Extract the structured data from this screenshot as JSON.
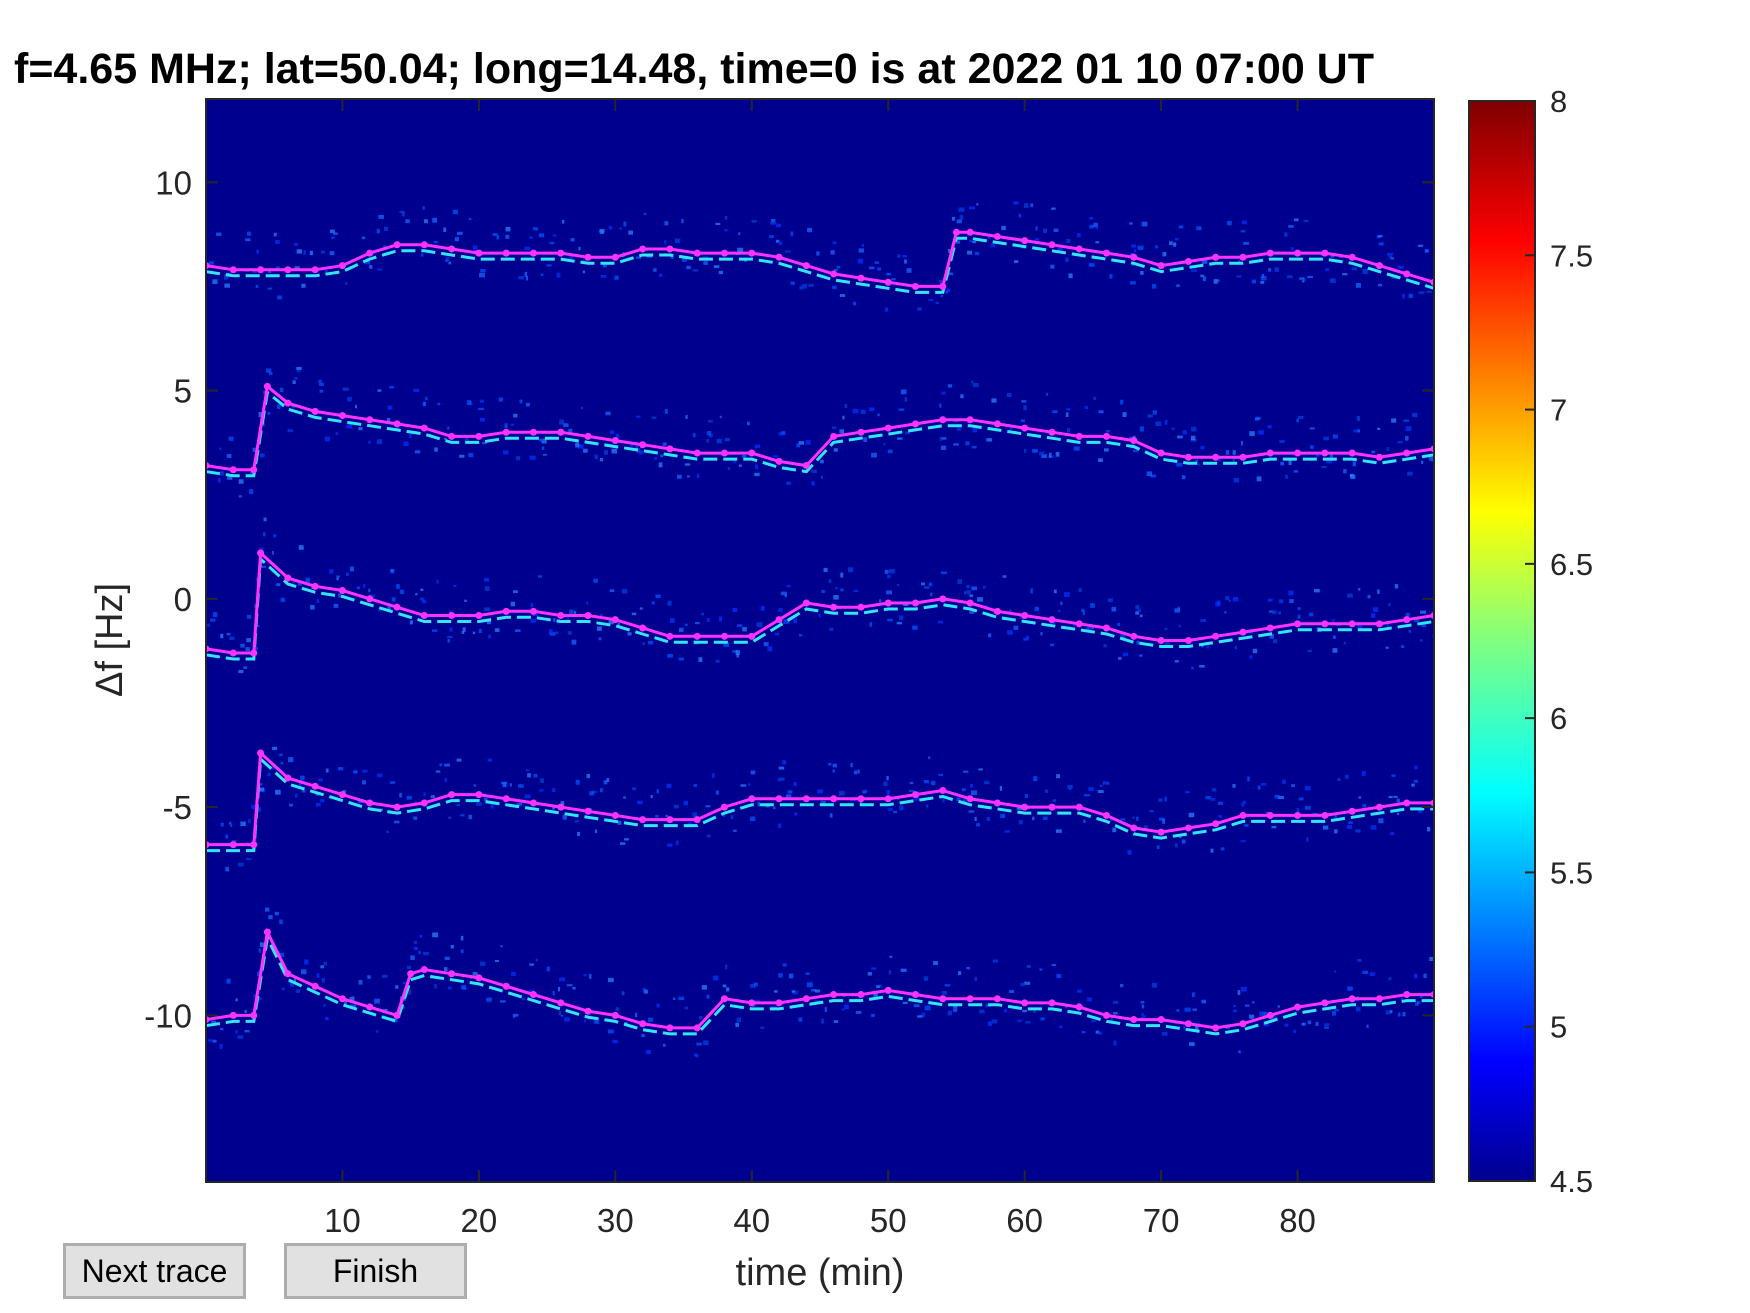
{
  "buttons": {
    "next_trace": "Next trace",
    "finish": "Finish"
  },
  "chart_data": {
    "type": "heatmap",
    "title": "f=4.65 MHz;  lat=50.04; long=14.48, time=0 is at 2022 01 10 07:00 UT",
    "xlabel": "time (min)",
    "ylabel": "Δf [Hz]",
    "xlim": [
      0,
      90
    ],
    "ylim": [
      -14,
      12
    ],
    "xticks": [
      10,
      20,
      30,
      40,
      50,
      60,
      70,
      80
    ],
    "xtick_labels": [
      "10",
      "20",
      "30",
      "40",
      "50",
      "60",
      "70",
      "80"
    ],
    "yticks": [
      10,
      5,
      0,
      -5,
      -10
    ],
    "ytick_labels": [
      "10",
      "5",
      "0",
      "-5",
      "-10"
    ],
    "colorbar": {
      "range": [
        4.5,
        8
      ],
      "ticks": [
        8,
        7.5,
        7,
        6.5,
        6,
        5.5,
        5,
        4.5
      ],
      "tick_labels": [
        "8",
        "7.5",
        "7",
        "6.5",
        "6",
        "5.5",
        "5",
        "4.5"
      ],
      "colormap": "jet"
    },
    "background_color": "#00008f",
    "trace_color": "#ff33ff",
    "echo_color": "#33e6ff",
    "traces": [
      {
        "x": [
          0,
          2,
          4,
          6,
          8,
          10,
          12,
          14,
          16,
          18,
          20,
          22,
          24,
          26,
          28,
          30,
          32,
          34,
          36,
          38,
          40,
          42,
          44,
          46,
          48,
          50,
          52,
          54,
          55,
          56,
          58,
          60,
          62,
          64,
          66,
          68,
          70,
          72,
          74,
          76,
          78,
          80,
          82,
          84,
          86,
          88,
          90
        ],
        "y": [
          8.0,
          7.9,
          7.9,
          7.9,
          7.9,
          8.0,
          8.3,
          8.5,
          8.5,
          8.4,
          8.3,
          8.3,
          8.3,
          8.3,
          8.2,
          8.2,
          8.4,
          8.4,
          8.3,
          8.3,
          8.3,
          8.2,
          8.0,
          7.8,
          7.7,
          7.6,
          7.5,
          7.5,
          8.8,
          8.8,
          8.7,
          8.6,
          8.5,
          8.4,
          8.3,
          8.2,
          8.0,
          8.1,
          8.2,
          8.2,
          8.3,
          8.3,
          8.3,
          8.2,
          8.0,
          7.8,
          7.6
        ]
      },
      {
        "x": [
          0,
          2,
          3.5,
          4.5,
          6,
          8,
          10,
          12,
          14,
          16,
          18,
          20,
          22,
          24,
          26,
          28,
          30,
          32,
          34,
          36,
          38,
          40,
          42,
          44,
          46,
          48,
          50,
          52,
          54,
          56,
          58,
          60,
          62,
          64,
          66,
          68,
          70,
          72,
          74,
          76,
          78,
          80,
          82,
          84,
          86,
          88,
          90
        ],
        "y": [
          3.2,
          3.1,
          3.1,
          5.1,
          4.7,
          4.5,
          4.4,
          4.3,
          4.2,
          4.1,
          3.9,
          3.9,
          4.0,
          4.0,
          4.0,
          3.9,
          3.8,
          3.7,
          3.6,
          3.5,
          3.5,
          3.5,
          3.3,
          3.2,
          3.9,
          4.0,
          4.1,
          4.2,
          4.3,
          4.3,
          4.2,
          4.1,
          4.0,
          3.9,
          3.9,
          3.8,
          3.5,
          3.4,
          3.4,
          3.4,
          3.5,
          3.5,
          3.5,
          3.5,
          3.4,
          3.5,
          3.6
        ]
      },
      {
        "x": [
          0,
          2,
          3.5,
          4,
          6,
          8,
          10,
          12,
          14,
          16,
          18,
          20,
          22,
          24,
          26,
          28,
          30,
          32,
          34,
          36,
          38,
          40,
          42,
          44,
          46,
          48,
          50,
          52,
          54,
          56,
          58,
          60,
          62,
          64,
          66,
          68,
          70,
          72,
          74,
          76,
          78,
          80,
          82,
          84,
          86,
          88,
          90
        ],
        "y": [
          -1.2,
          -1.3,
          -1.3,
          1.1,
          0.5,
          0.3,
          0.2,
          0.0,
          -0.2,
          -0.4,
          -0.4,
          -0.4,
          -0.3,
          -0.3,
          -0.4,
          -0.4,
          -0.5,
          -0.7,
          -0.9,
          -0.9,
          -0.9,
          -0.9,
          -0.5,
          -0.1,
          -0.2,
          -0.2,
          -0.1,
          -0.1,
          0.0,
          -0.1,
          -0.3,
          -0.4,
          -0.5,
          -0.6,
          -0.7,
          -0.9,
          -1.0,
          -1.0,
          -0.9,
          -0.8,
          -0.7,
          -0.6,
          -0.6,
          -0.6,
          -0.6,
          -0.5,
          -0.4
        ]
      },
      {
        "x": [
          0,
          2,
          3.5,
          4,
          6,
          8,
          10,
          12,
          14,
          16,
          18,
          20,
          22,
          24,
          26,
          28,
          30,
          32,
          34,
          36,
          38,
          40,
          42,
          44,
          46,
          48,
          50,
          52,
          54,
          56,
          58,
          60,
          62,
          64,
          66,
          68,
          70,
          72,
          74,
          76,
          78,
          80,
          82,
          84,
          86,
          88,
          90
        ],
        "y": [
          -5.9,
          -5.9,
          -5.9,
          -3.7,
          -4.3,
          -4.5,
          -4.7,
          -4.9,
          -5.0,
          -4.9,
          -4.7,
          -4.7,
          -4.8,
          -4.9,
          -5.0,
          -5.1,
          -5.2,
          -5.3,
          -5.3,
          -5.3,
          -5.0,
          -4.8,
          -4.8,
          -4.8,
          -4.8,
          -4.8,
          -4.8,
          -4.7,
          -4.6,
          -4.8,
          -4.9,
          -5.0,
          -5.0,
          -5.0,
          -5.2,
          -5.5,
          -5.6,
          -5.5,
          -5.4,
          -5.2,
          -5.2,
          -5.2,
          -5.2,
          -5.1,
          -5.0,
          -4.9,
          -4.9
        ]
      },
      {
        "x": [
          0,
          2,
          3.5,
          4.5,
          6,
          8,
          10,
          12,
          14,
          15,
          16,
          18,
          20,
          22,
          24,
          26,
          28,
          30,
          32,
          34,
          36,
          38,
          40,
          42,
          44,
          46,
          48,
          50,
          52,
          54,
          56,
          58,
          60,
          62,
          64,
          66,
          68,
          70,
          72,
          74,
          76,
          78,
          80,
          82,
          84,
          86,
          88,
          90
        ],
        "y": [
          -10.1,
          -10.0,
          -10.0,
          -8.0,
          -9.0,
          -9.3,
          -9.6,
          -9.8,
          -10.0,
          -9.0,
          -8.9,
          -9.0,
          -9.1,
          -9.3,
          -9.5,
          -9.7,
          -9.9,
          -10.0,
          -10.2,
          -10.3,
          -10.3,
          -9.6,
          -9.7,
          -9.7,
          -9.6,
          -9.5,
          -9.5,
          -9.4,
          -9.5,
          -9.6,
          -9.6,
          -9.6,
          -9.7,
          -9.7,
          -9.8,
          -10.0,
          -10.1,
          -10.1,
          -10.2,
          -10.3,
          -10.2,
          -10.0,
          -9.8,
          -9.7,
          -9.6,
          -9.6,
          -9.5,
          -9.5
        ]
      }
    ]
  }
}
